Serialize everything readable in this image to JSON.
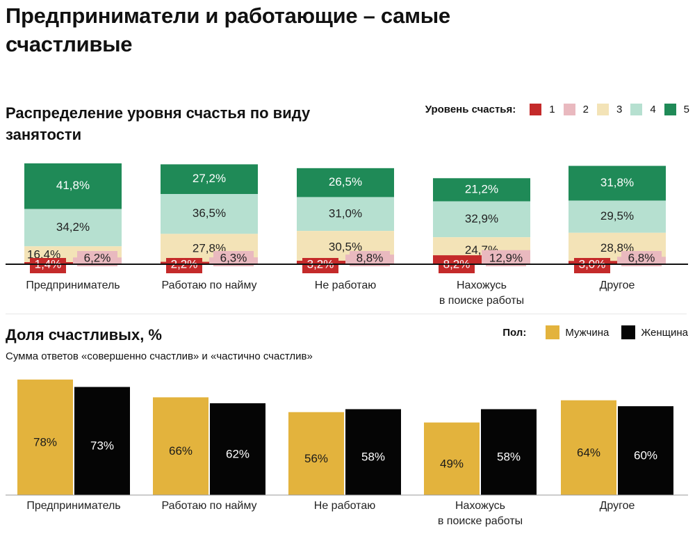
{
  "title": "Предприниматели и работающие – самые счастливые",
  "colors": {
    "level1": "#c42a2a",
    "level2": "#e9b9bf",
    "level3": "#f3e3b7",
    "level4": "#b6e0d0",
    "level5": "#1f8a57",
    "men": "#e3b33d",
    "women": "#050505"
  },
  "chart_data": [
    {
      "type": "bar",
      "stacked": true,
      "title": "Распределение уровня счастья по виду занятости",
      "legend_title": "Уровень счастья:",
      "legend_placement": "top-right",
      "categories": [
        "Предприниматель",
        "Работаю по найму",
        "Не работаю",
        "Нахожусь в поиске работы",
        "Другое"
      ],
      "series": [
        {
          "name": "1",
          "values": [
            1.4,
            2.2,
            3.2,
            8.2,
            3.0
          ],
          "labels": [
            "1,4%",
            "2,2%",
            "3,2%",
            "8,2%",
            "3,0%"
          ]
        },
        {
          "name": "2",
          "values": [
            6.2,
            6.3,
            8.8,
            12.9,
            6.8
          ],
          "labels": [
            "6,2%",
            "6,3%",
            "8,8%",
            "12,9%",
            "6,8%"
          ]
        },
        {
          "name": "3",
          "values": [
            16.4,
            27.8,
            30.5,
            24.7,
            28.8
          ],
          "labels": [
            "16,4%",
            "27,8%",
            "30,5%",
            "24,7%",
            "28,8%"
          ]
        },
        {
          "name": "4",
          "values": [
            34.2,
            36.5,
            31.0,
            32.9,
            29.5
          ],
          "labels": [
            "34,2%",
            "36,5%",
            "31,0%",
            "32,9%",
            "29,5%"
          ]
        },
        {
          "name": "5",
          "values": [
            41.8,
            27.2,
            26.5,
            21.2,
            31.8
          ],
          "labels": [
            "41,8%",
            "27,2%",
            "26,5%",
            "21,2%",
            "31,8%"
          ]
        }
      ],
      "ylim": [
        0,
        100
      ],
      "grid": false
    },
    {
      "type": "bar",
      "title": "Доля счастливых, %",
      "subtitle": "Сумма ответов «совершенно счастлив» и «частично счастлив»",
      "legend_title": "Пол:",
      "legend_placement": "top-right",
      "categories": [
        "Предприниматель",
        "Работаю по найму",
        "Не работаю",
        "Нахожусь в поиске работы",
        "Другое"
      ],
      "series": [
        {
          "name": "Мужчина",
          "values": [
            78,
            66,
            56,
            49,
            64
          ],
          "labels": [
            "78%",
            "66%",
            "56%",
            "49%",
            "64%"
          ]
        },
        {
          "name": "Женщина",
          "values": [
            73,
            62,
            58,
            58,
            60
          ],
          "labels": [
            "73%",
            "62%",
            "58%",
            "58%",
            "60%"
          ]
        }
      ],
      "ylim": [
        0,
        100
      ],
      "grid": false
    }
  ]
}
